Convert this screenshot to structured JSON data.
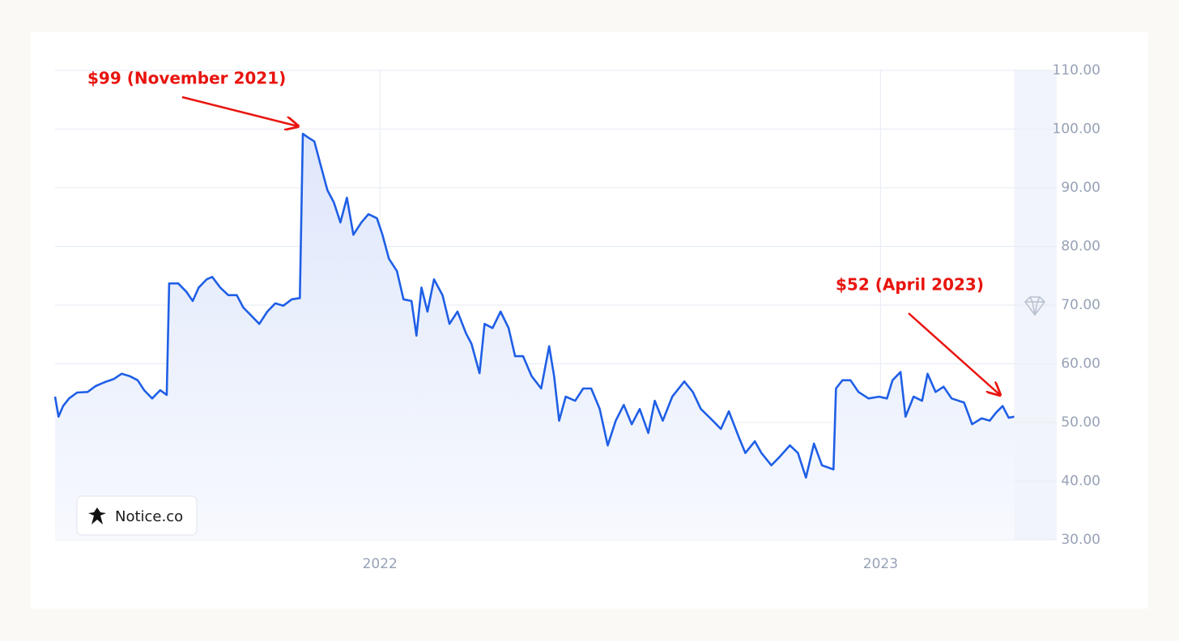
{
  "chart_data": {
    "type": "line",
    "color": "#1f5fe6",
    "annotations": [
      "$99 (November 2021)",
      "$52 (April 2023)"
    ],
    "watermark": "Notice.co",
    "grid": true,
    "xlim": [
      2021.351,
      2023.352
    ],
    "xticks": [
      2022,
      2023
    ],
    "ylim": [
      30,
      110
    ],
    "yticks": [
      {
        "value": 30,
        "label": "30.00"
      },
      {
        "value": 40,
        "label": "40.00"
      },
      {
        "value": 50,
        "label": "50.00"
      },
      {
        "value": 60,
        "label": "60.00"
      },
      {
        "value": 70,
        "label": "70.00"
      },
      {
        "value": 80,
        "label": "80.00"
      },
      {
        "value": 90,
        "label": "90.00"
      },
      {
        "value": 100,
        "label": "100.00"
      },
      {
        "value": 110,
        "label": "110.00"
      }
    ],
    "x": [
      2021.351,
      2021.358,
      2021.367,
      2021.379,
      2021.395,
      2021.416,
      2021.432,
      2021.451,
      2021.468,
      2021.484,
      2021.5,
      2021.516,
      2021.529,
      2021.545,
      2021.561,
      2021.574,
      2021.579,
      2021.597,
      2021.613,
      2021.626,
      2021.638,
      2021.654,
      2021.665,
      2021.681,
      2021.697,
      2021.714,
      2021.727,
      2021.743,
      2021.759,
      2021.775,
      2021.791,
      2021.807,
      2021.824,
      2021.84,
      2021.846,
      2021.856,
      2021.869,
      2021.882,
      2021.895,
      2021.908,
      2021.921,
      2021.934,
      2021.947,
      2021.963,
      2021.977,
      2021.994,
      2022.005,
      2022.018,
      2022.034,
      2022.047,
      2022.063,
      2022.073,
      2022.083,
      2022.095,
      2022.108,
      2022.125,
      2022.139,
      2022.155,
      2022.172,
      2022.183,
      2022.199,
      2022.209,
      2022.225,
      2022.241,
      2022.257,
      2022.27,
      2022.286,
      2022.303,
      2022.322,
      2022.338,
      2022.348,
      2022.358,
      2022.371,
      2022.39,
      2022.406,
      2022.422,
      2022.439,
      2022.455,
      2022.471,
      2022.487,
      2022.503,
      2022.519,
      2022.536,
      2022.549,
      2022.565,
      2022.584,
      2022.608,
      2022.625,
      2022.641,
      2022.665,
      2022.681,
      2022.697,
      2022.717,
      2022.73,
      2022.749,
      2022.762,
      2022.782,
      2022.798,
      2022.819,
      2022.835,
      2022.851,
      2022.867,
      2022.883,
      2022.906,
      2022.911,
      2022.924,
      2022.94,
      2022.956,
      2022.976,
      2022.997,
      2023.013,
      2023.024,
      2023.04,
      2023.05,
      2023.066,
      2023.083,
      2023.094,
      2023.11,
      2023.126,
      2023.142,
      2023.167,
      2023.183,
      2023.202,
      2023.218,
      2023.231,
      2023.244,
      2023.256,
      2023.267
    ],
    "values": [
      54.4,
      51,
      52.8,
      54.1,
      55.1,
      55.2,
      56.2,
      56.9,
      57.4,
      58.3,
      57.9,
      57.2,
      55.5,
      54.1,
      55.5,
      54.7,
      73.7,
      73.7,
      72.3,
      70.7,
      73,
      74.4,
      74.8,
      73,
      71.7,
      71.7,
      69.6,
      68.2,
      66.8,
      68.9,
      70.3,
      69.9,
      71,
      71.2,
      99.2,
      98.6,
      97.9,
      93.7,
      89.6,
      87.5,
      84.1,
      88.3,
      82,
      84.1,
      85.5,
      84.8,
      82,
      77.9,
      75.8,
      71,
      70.7,
      64.8,
      73,
      68.9,
      74.4,
      71.7,
      66.8,
      68.9,
      65.2,
      63.4,
      58.4,
      66.8,
      66.1,
      68.9,
      66.1,
      61.3,
      61.3,
      57.9,
      55.8,
      63,
      57.9,
      50.3,
      54.4,
      53.7,
      55.8,
      55.8,
      52.3,
      46.1,
      50.3,
      53,
      49.7,
      52.3,
      48.2,
      53.7,
      50.3,
      54.4,
      57,
      55.2,
      52.3,
      50.3,
      48.9,
      51.9,
      47.5,
      44.8,
      46.8,
      44.8,
      42.7,
      44.1,
      46.1,
      44.8,
      40.6,
      46.4,
      42.7,
      42,
      55.8,
      57.2,
      57.2,
      55.2,
      54.1,
      54.4,
      54.1,
      57.2,
      58.6,
      51,
      54.4,
      53.7,
      58.3,
      55.2,
      56.1,
      54.1,
      53.4,
      49.7,
      50.7,
      50.3,
      51.7,
      52.8,
      50.8,
      51
    ]
  }
}
